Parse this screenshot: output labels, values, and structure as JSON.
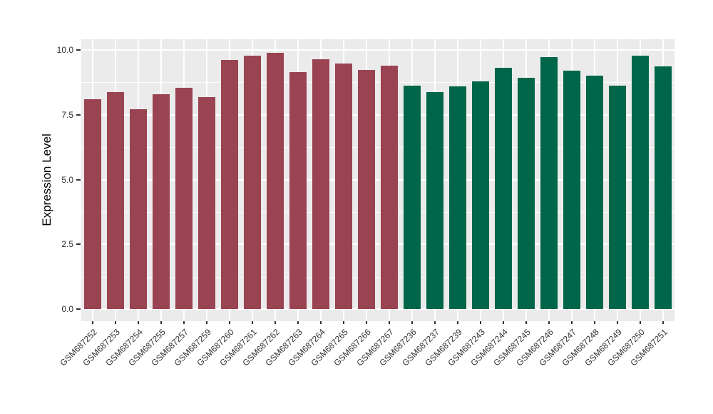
{
  "chart_data": {
    "type": "bar",
    "title": "",
    "xlabel": "",
    "ylabel": "Expression Level",
    "ylim": [
      0,
      10.4
    ],
    "yticks": [
      0.0,
      2.5,
      5.0,
      7.5,
      10.0
    ],
    "ytick_labels": [
      "0.0",
      "2.5",
      "5.0",
      "7.5",
      "10.0"
    ],
    "yminor_ticks": [
      1.25,
      3.75,
      6.25,
      8.75
    ],
    "grid": "on",
    "legend": "none",
    "panel_bg": "#EBEBEB",
    "grid_color": "#FFFFFF",
    "categories": [
      "GSM687252",
      "GSM687253",
      "GSM687254",
      "GSM687255",
      "GSM687257",
      "GSM687259",
      "GSM687260",
      "GSM687261",
      "GSM687262",
      "GSM687263",
      "GSM687264",
      "GSM687265",
      "GSM687266",
      "GSM687267",
      "GSM687236",
      "GSM687237",
      "GSM687239",
      "GSM687243",
      "GSM687244",
      "GSM687245",
      "GSM687246",
      "GSM687247",
      "GSM687248",
      "GSM687249",
      "GSM687250",
      "GSM687251"
    ],
    "values": [
      8.1,
      8.37,
      7.71,
      8.29,
      8.54,
      8.18,
      9.61,
      9.78,
      9.89,
      9.15,
      9.64,
      9.48,
      9.24,
      9.39,
      8.62,
      8.37,
      8.6,
      8.79,
      9.31,
      8.93,
      9.72,
      9.2,
      9.01,
      8.62,
      9.78,
      9.37
    ],
    "groups": [
      "g1",
      "g1",
      "g1",
      "g1",
      "g1",
      "g1",
      "g1",
      "g1",
      "g1",
      "g1",
      "g1",
      "g1",
      "g1",
      "g1",
      "g2",
      "g2",
      "g2",
      "g2",
      "g2",
      "g2",
      "g2",
      "g2",
      "g2",
      "g2",
      "g2",
      "g2"
    ],
    "group_colors": {
      "g1": "#9A4352",
      "g2": "#006649"
    }
  }
}
